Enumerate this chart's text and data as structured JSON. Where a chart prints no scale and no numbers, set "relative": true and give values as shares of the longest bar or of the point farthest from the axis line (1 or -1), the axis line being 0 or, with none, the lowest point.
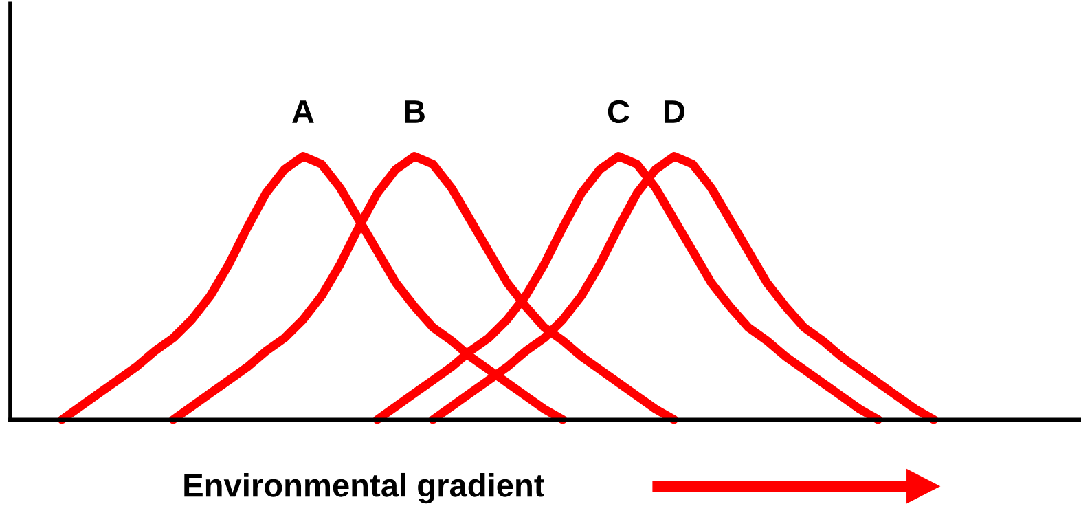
{
  "chart_data": {
    "type": "line",
    "relative": true,
    "xlabel": "Environmental gradient",
    "legend": false,
    "marker": "none",
    "line_style": "solid",
    "categories": [
      null,
      null,
      null,
      null,
      null,
      null,
      null,
      null,
      null,
      null,
      null,
      null,
      null,
      null,
      null,
      null,
      null,
      null,
      null,
      null,
      null,
      null,
      null,
      null,
      null,
      null,
      null,
      null,
      null,
      null,
      null,
      null,
      null,
      null,
      null,
      null,
      null,
      null,
      null,
      null,
      null,
      null,
      null,
      null,
      null,
      null,
      null,
      null
    ],
    "series": [
      {
        "name": "A",
        "color": "#ff0000",
        "values": [
          0,
          0.05,
          0.1,
          0.15,
          0.2,
          0.26,
          0.31,
          0.38,
          0.47,
          0.59,
          0.73,
          0.86,
          0.95,
          1,
          0.97,
          0.88,
          0.76,
          0.64,
          0.52,
          0.43,
          0.35,
          0.3,
          0.24,
          0.19,
          0.14,
          0.09,
          0.04,
          0,
          null,
          null,
          null,
          null,
          null,
          null,
          null,
          null,
          null,
          null,
          null,
          null,
          null,
          null,
          null,
          null,
          null,
          null,
          null,
          null
        ]
      },
      {
        "name": "B",
        "color": "#ff0000",
        "values": [
          null,
          null,
          null,
          null,
          null,
          null,
          0,
          0.05,
          0.1,
          0.15,
          0.2,
          0.26,
          0.31,
          0.38,
          0.47,
          0.59,
          0.73,
          0.86,
          0.95,
          1,
          0.97,
          0.88,
          0.76,
          0.64,
          0.52,
          0.43,
          0.35,
          0.3,
          0.24,
          0.19,
          0.14,
          0.09,
          0.04,
          0,
          null,
          null,
          null,
          null,
          null,
          null,
          null,
          null,
          null,
          null,
          null,
          null,
          null,
          null
        ]
      },
      {
        "name": "C",
        "color": "#ff0000",
        "values": [
          null,
          null,
          null,
          null,
          null,
          null,
          null,
          null,
          null,
          null,
          null,
          null,
          null,
          null,
          null,
          null,
          null,
          0,
          0.05,
          0.1,
          0.15,
          0.2,
          0.26,
          0.31,
          0.38,
          0.47,
          0.59,
          0.73,
          0.86,
          0.95,
          1,
          0.97,
          0.88,
          0.76,
          0.64,
          0.52,
          0.43,
          0.35,
          0.3,
          0.24,
          0.19,
          0.14,
          0.09,
          0.04,
          0,
          null,
          null,
          null
        ]
      },
      {
        "name": "D",
        "color": "#ff0000",
        "values": [
          null,
          null,
          null,
          null,
          null,
          null,
          null,
          null,
          null,
          null,
          null,
          null,
          null,
          null,
          null,
          null,
          null,
          null,
          null,
          null,
          0,
          0.05,
          0.1,
          0.15,
          0.2,
          0.26,
          0.31,
          0.38,
          0.47,
          0.59,
          0.73,
          0.86,
          0.95,
          1,
          0.97,
          0.88,
          0.76,
          0.64,
          0.52,
          0.43,
          0.35,
          0.3,
          0.24,
          0.19,
          0.14,
          0.09,
          0.04,
          0
        ]
      }
    ]
  }
}
